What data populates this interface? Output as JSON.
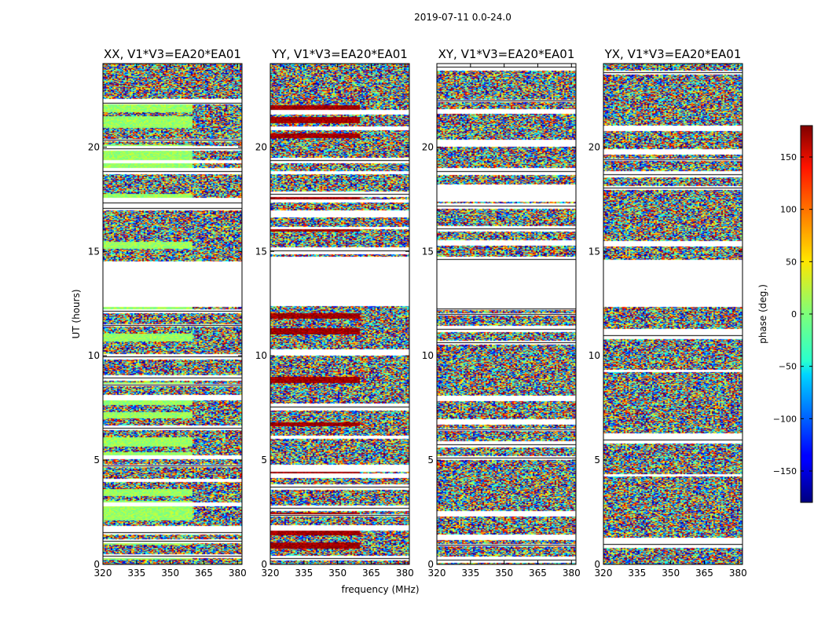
{
  "chart_data": {
    "type": "heatmap",
    "title": "2019-07-11 0.0-24.0",
    "xlabel": "frequency (MHz)",
    "ylabel": "UT (hours)",
    "xlim": [
      320,
      382
    ],
    "ylim": [
      0,
      24
    ],
    "x_ticks": [
      "320",
      "335",
      "350",
      "365",
      "380"
    ],
    "y_ticks": [
      "0",
      "5",
      "10",
      "15",
      "20"
    ],
    "colormap": "jet",
    "colorbar": {
      "label": "phase (deg.)",
      "range": [
        -180,
        180
      ],
      "ticks": [
        "−150",
        "−100",
        "−50",
        "0",
        "50",
        "100",
        "150"
      ]
    },
    "panels": [
      {
        "title": "XX, V1*V3=EA20*EA01",
        "dominant_phase_deg": 10
      },
      {
        "title": "YY, V1*V3=EA20*EA01",
        "dominant_phase_deg": 170
      },
      {
        "title": "XY, V1*V3=EA20*EA01",
        "dominant_phase_deg": null
      },
      {
        "title": "YX, V1*V3=EA20*EA01",
        "dominant_phase_deg": null
      }
    ],
    "data_gaps_ut_hours": [
      [
        12.4,
        14.7
      ]
    ]
  }
}
